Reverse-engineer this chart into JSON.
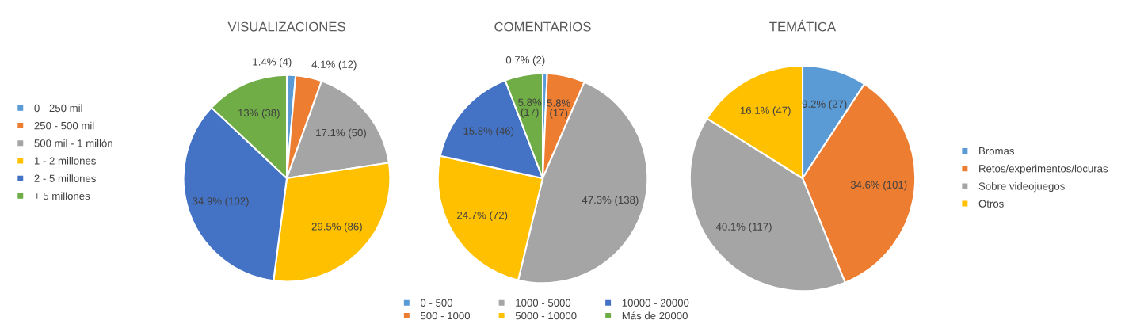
{
  "chart_data": [
    {
      "type": "pie",
      "title": "VISUALIZACIONES",
      "legend": "left",
      "categories": [
        "0 - 250 mil",
        "250 - 500 mil",
        "500 mil - 1 millón",
        "1 - 2 millones",
        "2 - 5 millones",
        "+ 5 millones"
      ],
      "values": [
        4,
        12,
        50,
        86,
        102,
        38
      ],
      "colors": [
        "#5b9bd5",
        "#ed7d31",
        "#a5a5a5",
        "#ffc000",
        "#4472c4",
        "#70ad47"
      ],
      "value_labels": [
        "1.4% (4)",
        "4.1% (12)",
        "17.1% (50)",
        "29.5% (86)",
        "34.9% (102)",
        "13% (38)"
      ]
    },
    {
      "type": "pie",
      "title": "COMENTARIOS",
      "legend": "bottom",
      "categories": [
        "0 - 500",
        "500 - 1000",
        "1000 - 5000",
        "5000 - 10000",
        "10000 - 20000",
        "Más de 20000"
      ],
      "values": [
        2,
        17,
        138,
        72,
        46,
        17
      ],
      "colors": [
        "#5b9bd5",
        "#ed7d31",
        "#a5a5a5",
        "#ffc000",
        "#4472c4",
        "#70ad47"
      ],
      "value_labels": [
        "0.7% (2)",
        "5.8% (17)",
        "47.3% (138)",
        "24.7% (72)",
        "15.8% (46)",
        "5.8% (17)"
      ]
    },
    {
      "type": "pie",
      "title": "TEMÁTICA",
      "legend": "right",
      "categories": [
        "Bromas",
        "Retos/experimentos/locuras",
        "Sobre videojuegos",
        "Otros"
      ],
      "values": [
        27,
        101,
        117,
        47
      ],
      "colors": [
        "#5b9bd5",
        "#ed7d31",
        "#a5a5a5",
        "#ffc000"
      ],
      "value_labels": [
        "9.2% (27)",
        "34.6% (101)",
        "40.1% (117)",
        "16.1% (47)"
      ]
    }
  ]
}
